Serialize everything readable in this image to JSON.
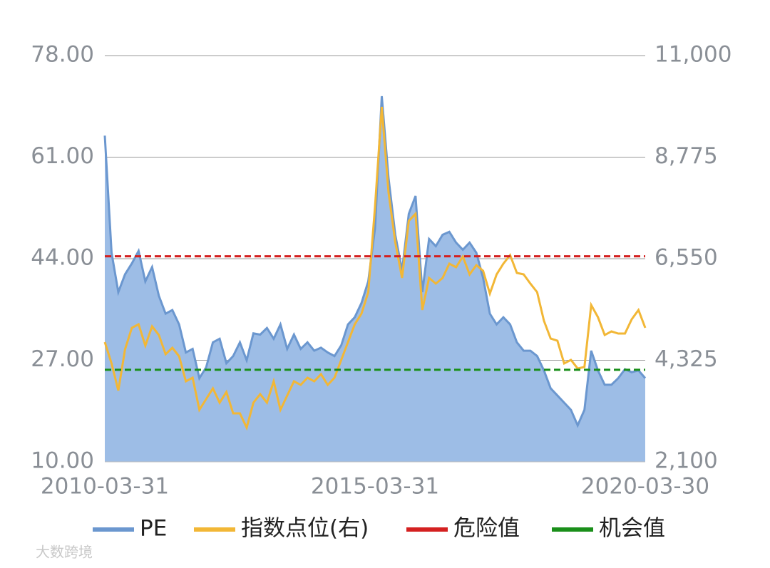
{
  "chart_data": {
    "type": "area-line-dual",
    "categories": [
      "2010-03-31",
      null,
      null,
      null,
      null,
      null,
      null,
      null,
      null,
      null,
      null,
      null,
      null,
      null,
      null,
      null,
      null,
      null,
      null,
      null,
      null,
      null,
      null,
      null,
      null,
      null,
      null,
      null,
      null,
      null,
      null,
      null,
      null,
      null,
      null,
      null,
      null,
      null,
      null,
      null,
      "2015-03-31",
      null,
      null,
      null,
      null,
      null,
      null,
      null,
      null,
      null,
      null,
      null,
      null,
      null,
      null,
      null,
      null,
      null,
      null,
      null,
      null,
      null,
      null,
      null,
      null,
      null,
      null,
      null,
      null,
      null,
      null,
      null,
      null,
      null,
      null,
      null,
      null,
      null,
      null,
      null,
      "2020-03-30"
    ],
    "series": [
      {
        "name": "PE",
        "kind": "area",
        "axis": "y",
        "color": "#6b97cf",
        "fill": "#9dbde6",
        "values": [
          64.6,
          45,
          38.4,
          41.4,
          43.2,
          45.3,
          40.2,
          42.6,
          37.8,
          34.8,
          35.4,
          33,
          28.3,
          28.9,
          24,
          25.8,
          30,
          30.6,
          26.5,
          27.7,
          30,
          27,
          31.5,
          31.3,
          32.4,
          30.6,
          33,
          28.9,
          31.3,
          28.9,
          30,
          28.6,
          29.1,
          28.3,
          27.7,
          29.5,
          33,
          34.2,
          36.6,
          40.2,
          49.1,
          71.2,
          57.5,
          48,
          42,
          51.5,
          54.5,
          38.4,
          47.3,
          46.1,
          48,
          48.5,
          46.7,
          45.5,
          46.7,
          45,
          40.8,
          34.8,
          33,
          34.2,
          33,
          30,
          28.6,
          28.6,
          27.7,
          25.3,
          22.3,
          21.1,
          19.9,
          18.7,
          16.1,
          18.7,
          28.6,
          25.3,
          22.9,
          22.9,
          24,
          25.5,
          25,
          25.3,
          24
        ]
      },
      {
        "name": "指数点位(右)",
        "kind": "line",
        "axis": "y2",
        "color": "#f2b736",
        "values": [
          4723,
          4255,
          3661,
          4567,
          5035,
          5113,
          4645,
          5067,
          4879,
          4458,
          4598,
          4411,
          3864,
          3942,
          3240,
          3474,
          3708,
          3396,
          3630,
          3162,
          3162,
          2849,
          3396,
          3583,
          3396,
          3864,
          3240,
          3552,
          3864,
          3786,
          3942,
          3864,
          4020,
          3786,
          3942,
          4333,
          4723,
          5113,
          5347,
          5816,
          7690,
          9876,
          8002,
          6909,
          6128,
          7378,
          7534,
          5426,
          6128,
          6004,
          6128,
          6441,
          6363,
          6597,
          6206,
          6409,
          6285,
          5785,
          6206,
          6441,
          6628,
          6238,
          6206,
          6004,
          5816,
          5192,
          4801,
          4754,
          4255,
          4333,
          4145,
          4177,
          5535,
          5269,
          4879,
          4957,
          4910,
          4910,
          5223,
          5426,
          5035
        ]
      },
      {
        "name": "危险值",
        "kind": "hline",
        "axis": "y",
        "color": "#d42020",
        "value": 44.4
      },
      {
        "name": "机会值",
        "kind": "hline",
        "axis": "y",
        "color": "#1a8f1a",
        "value": 25.4
      }
    ],
    "ylim": [
      10,
      78
    ],
    "yticks": [
      {
        "value": 10,
        "label": "10.00"
      },
      {
        "value": 27,
        "label": "27.00"
      },
      {
        "value": 44,
        "label": "44.00"
      },
      {
        "value": 61,
        "label": "61.00"
      },
      {
        "value": 78,
        "label": "78.00"
      }
    ],
    "y2lim": [
      2100,
      11000
    ],
    "y2ticks": [
      {
        "value": 2100,
        "label": "2,100"
      },
      {
        "value": 4325,
        "label": "4,325"
      },
      {
        "value": 6550,
        "label": "6,550"
      },
      {
        "value": 8775,
        "label": "8,775"
      },
      {
        "value": 11000,
        "label": "11,000"
      }
    ],
    "grid": true,
    "legend": "bottom",
    "watermark": "大数跨境"
  }
}
